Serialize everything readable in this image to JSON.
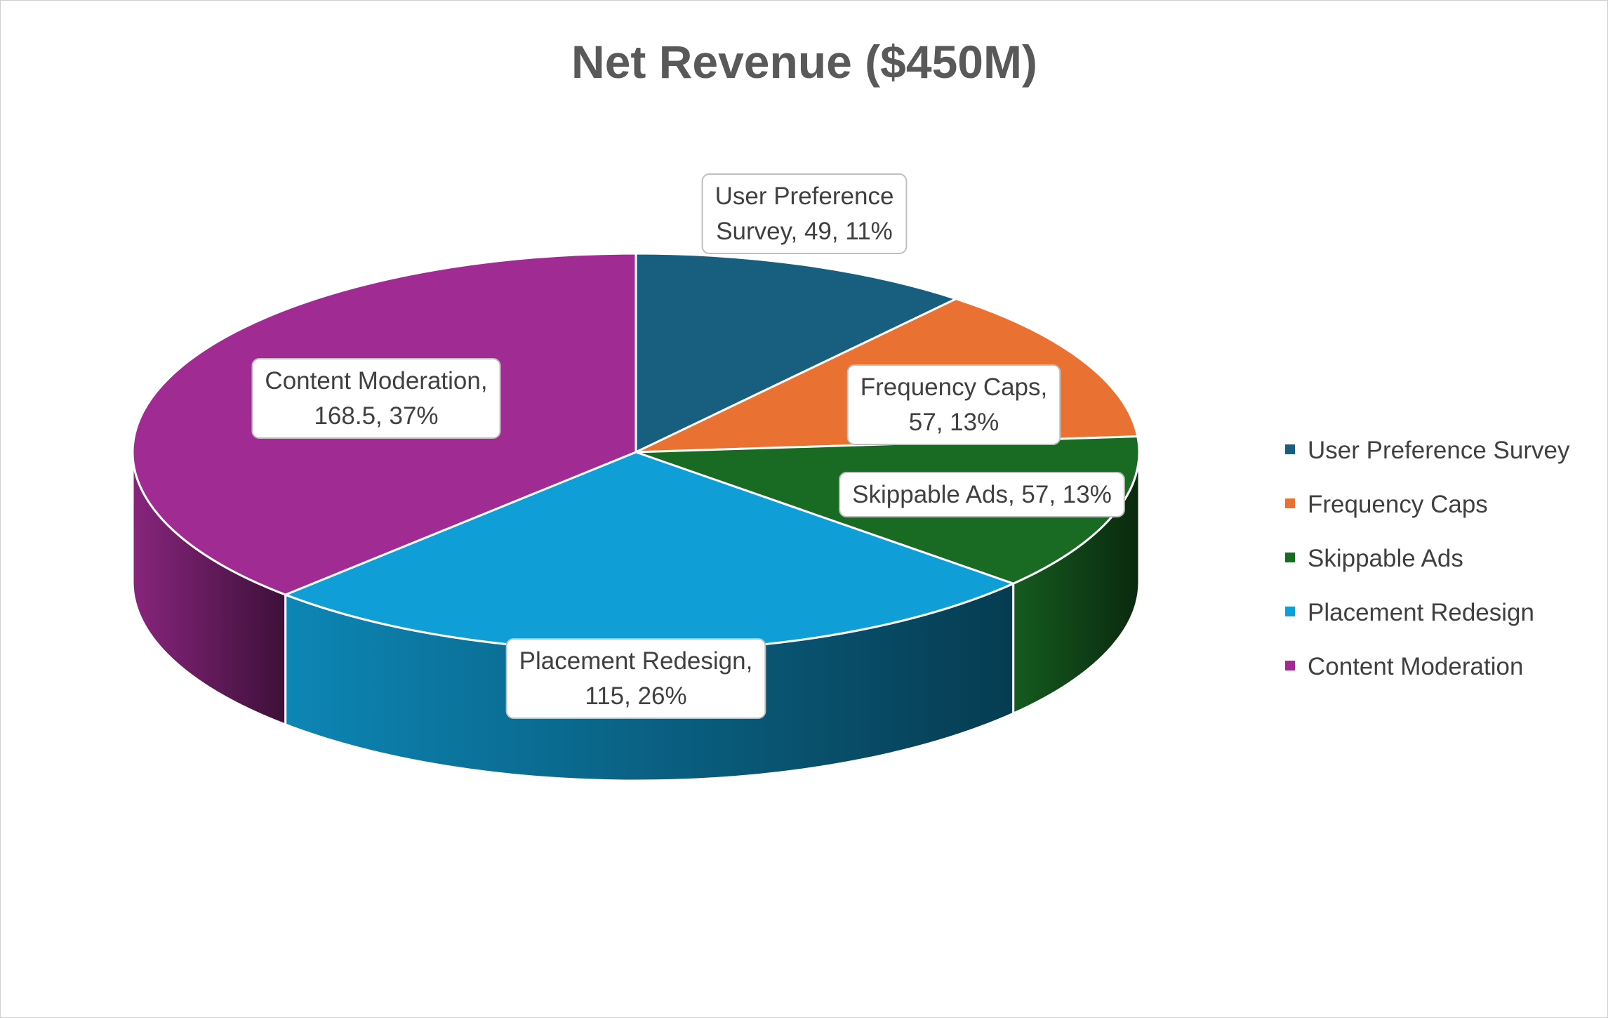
{
  "chart_data": {
    "type": "pie",
    "title": "Net Revenue ($450M)",
    "categories": [
      "User Preference Survey",
      "Frequency Caps",
      "Skippable Ads",
      "Placement Redesign",
      "Content Moderation"
    ],
    "values": [
      49,
      57,
      57,
      115,
      168.5
    ],
    "percentages": [
      "11%",
      "13%",
      "13%",
      "26%",
      "37%"
    ],
    "data_labels": [
      [
        "User Preference",
        "Survey, 49, 11%"
      ],
      [
        "Frequency Caps,",
        "57, 13%"
      ],
      [
        "Skippable Ads, 57, 13%"
      ],
      [
        "Placement Redesign,",
        "115, 26%"
      ],
      [
        "Content Moderation,",
        "168.5, 37%"
      ]
    ],
    "colors": [
      "#175E7F",
      "#E97132",
      "#196B24",
      "#0F9ED5",
      "#A02B93"
    ],
    "legend_position": "right",
    "style": "3D pie"
  }
}
